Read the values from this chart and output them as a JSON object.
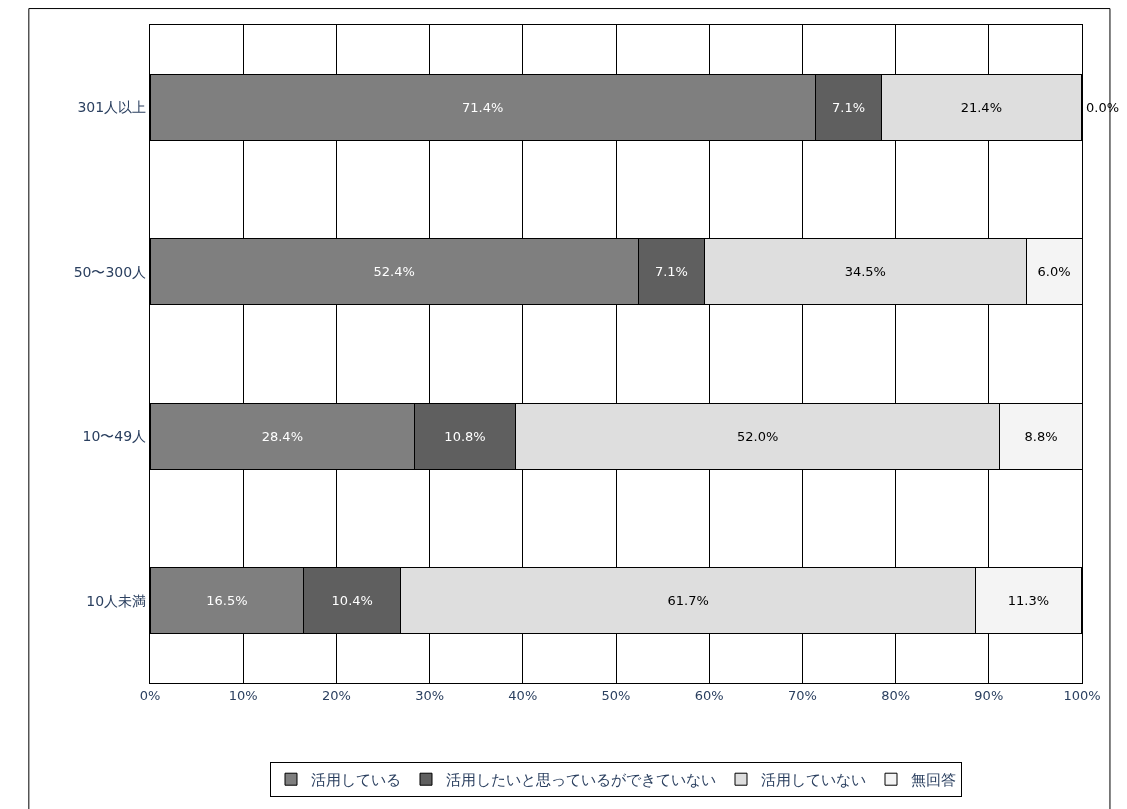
{
  "chart_data": {
    "type": "bar",
    "orientation": "horizontal",
    "stacked": true,
    "categories": [
      "301人以上",
      "50〜300人",
      "10〜49人",
      "10人未満"
    ],
    "series": [
      {
        "name": "活用している",
        "color": "#7f7f7f",
        "values": [
          71.4,
          52.4,
          28.4,
          16.5
        ],
        "value_labels": [
          "71.4%",
          "52.4%",
          "28.4%",
          "16.5%"
        ]
      },
      {
        "name": "活用したいと思っているができていない",
        "color": "#5f5f5f",
        "values": [
          7.1,
          7.1,
          10.8,
          10.4
        ],
        "value_labels": [
          "7.1%",
          "7.1%",
          "10.8%",
          "10.4%"
        ]
      },
      {
        "name": "活用していない",
        "color": "#dedede",
        "values": [
          21.4,
          34.5,
          52.0,
          61.7
        ],
        "value_labels": [
          "21.4%",
          "34.5%",
          "52.0%",
          "61.7%"
        ]
      },
      {
        "name": "無回答",
        "color": "#f4f4f4",
        "values": [
          0.0,
          6.0,
          8.8,
          11.3
        ],
        "value_labels": [
          "0.0%",
          "6.0%",
          "8.8%",
          "11.3%"
        ]
      }
    ],
    "xlim": [
      0,
      100
    ],
    "xticks": [
      {
        "value": 0,
        "label": "0%"
      },
      {
        "value": 10,
        "label": "10%"
      },
      {
        "value": 20,
        "label": "20%"
      },
      {
        "value": 30,
        "label": "30%"
      },
      {
        "value": 40,
        "label": "40%"
      },
      {
        "value": 50,
        "label": "50%"
      },
      {
        "value": 60,
        "label": "60%"
      },
      {
        "value": 70,
        "label": "70%"
      },
      {
        "value": 80,
        "label": "80%"
      },
      {
        "value": 90,
        "label": "90%"
      },
      {
        "value": 100,
        "label": "100%"
      }
    ],
    "grid": "x",
    "legend": "bottom"
  }
}
